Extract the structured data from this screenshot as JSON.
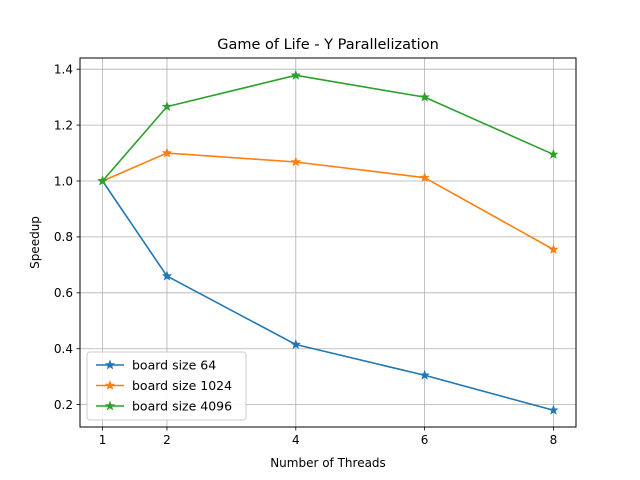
{
  "chart_data": {
    "type": "line",
    "title": "Game of Life - Y Parallelization",
    "xlabel": "Number of Threads",
    "ylabel": "Speedup",
    "x": [
      1,
      2,
      4,
      6,
      8
    ],
    "xticks": [
      "1",
      "2",
      "4",
      "6",
      "8"
    ],
    "yticks": [
      "0.2",
      "0.4",
      "0.6",
      "0.8",
      "1.0",
      "1.2",
      "1.4"
    ],
    "xlim": [
      0.65,
      8.35
    ],
    "ylim": [
      0.12,
      1.44
    ],
    "grid": true,
    "marker": "star",
    "legend_position": "lower-left",
    "series": [
      {
        "name": "board size 64",
        "color": "#1f77b4",
        "values": [
          1.0,
          0.66,
          0.415,
          0.305,
          0.18
        ]
      },
      {
        "name": "board size 1024",
        "color": "#ff7f0e",
        "values": [
          1.0,
          1.1,
          1.068,
          1.012,
          0.755
        ]
      },
      {
        "name": "board size 4096",
        "color": "#2ca02c",
        "values": [
          1.0,
          1.266,
          1.378,
          1.3,
          1.095
        ]
      }
    ]
  }
}
